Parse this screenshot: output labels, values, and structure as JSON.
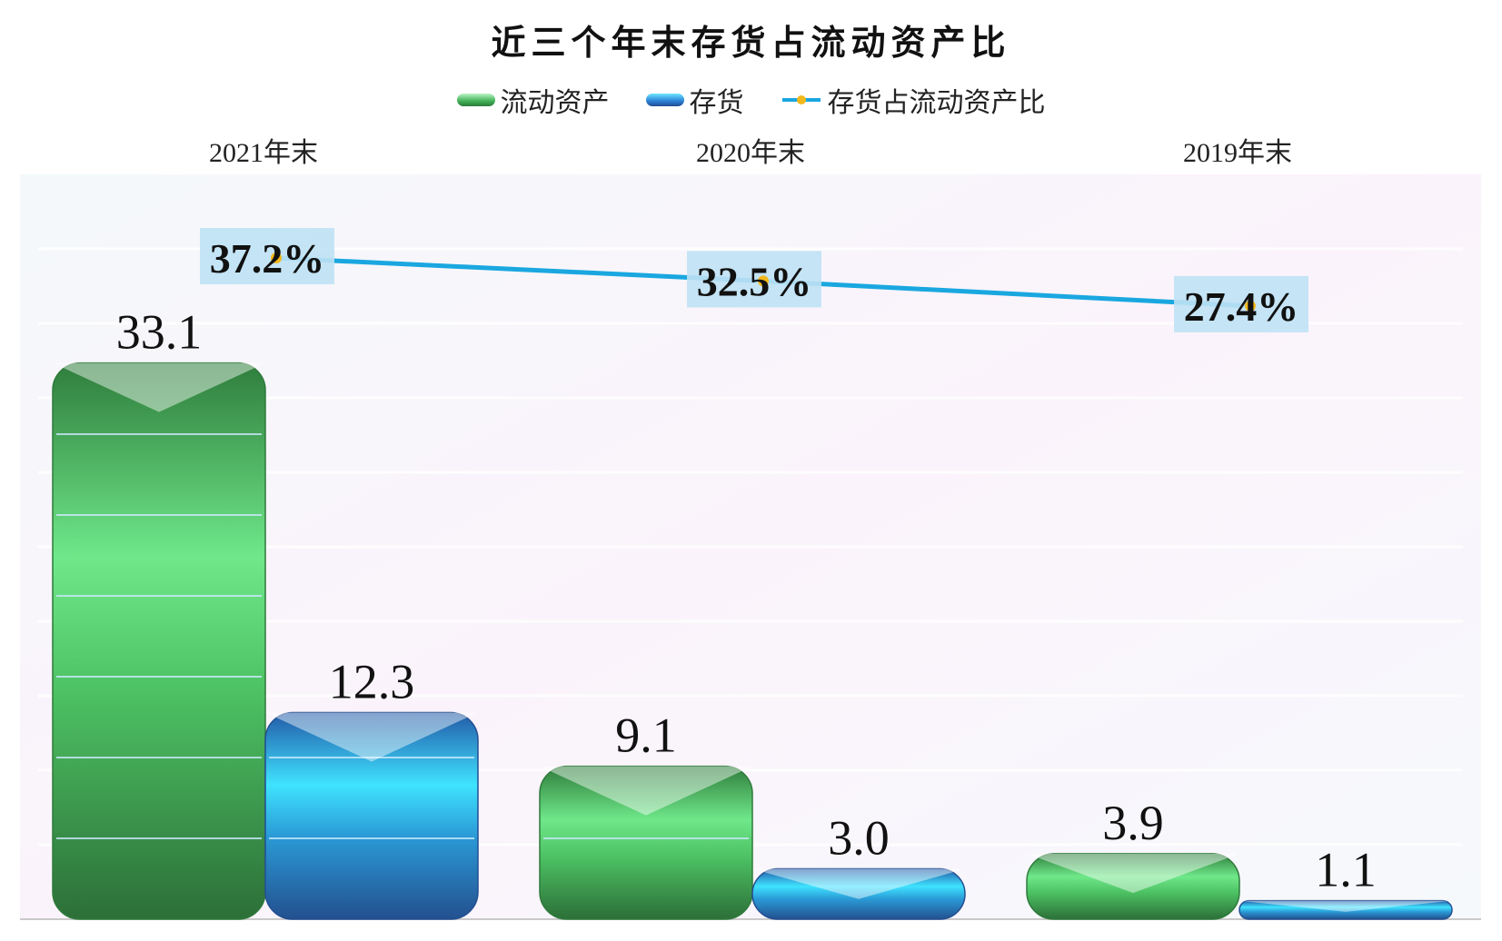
{
  "chart_data": {
    "type": "bar",
    "title": "近三个年末存货占流动资产比",
    "categories": [
      "2021年末",
      "2020年末",
      "2019年末"
    ],
    "series": [
      {
        "name": "流动资产",
        "kind": "bar",
        "values": [
          33.1,
          9.1,
          3.9
        ],
        "labels": [
          "33.1",
          "9.1",
          "3.9"
        ],
        "color": "#3fae55"
      },
      {
        "name": "存货",
        "kind": "bar",
        "values": [
          12.3,
          3.0,
          1.1
        ],
        "labels": [
          "12.3",
          "3.0",
          "1.1"
        ],
        "color": "#2a7fd6"
      },
      {
        "name": "存货占流动资产比",
        "kind": "line",
        "values": [
          37.2,
          32.5,
          27.4
        ],
        "labels": [
          "37.2%",
          "32.5%",
          "27.4%"
        ],
        "color": "#1aa7e0",
        "marker_color": "#f2b81a"
      }
    ],
    "legend_position": "top",
    "category_axis_position": "top",
    "grid": true
  }
}
